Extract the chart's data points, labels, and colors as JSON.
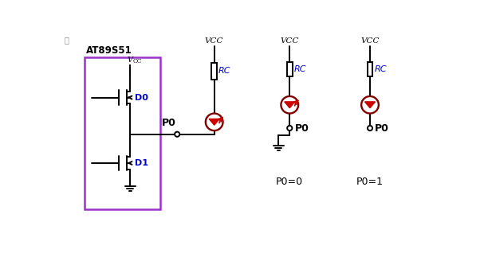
{
  "bg_color": "#ffffff",
  "chip_label": "AT89S51",
  "blue_color": "#0000cc",
  "red_color": "#cc0000",
  "dark_red": "#800000",
  "black": "#000000",
  "purple_box": "#9933cc",
  "p0_eq0": "P0=0",
  "p0_eq1": "P0=1",
  "fig_w": 6.12,
  "fig_h": 3.28,
  "dpi": 100
}
